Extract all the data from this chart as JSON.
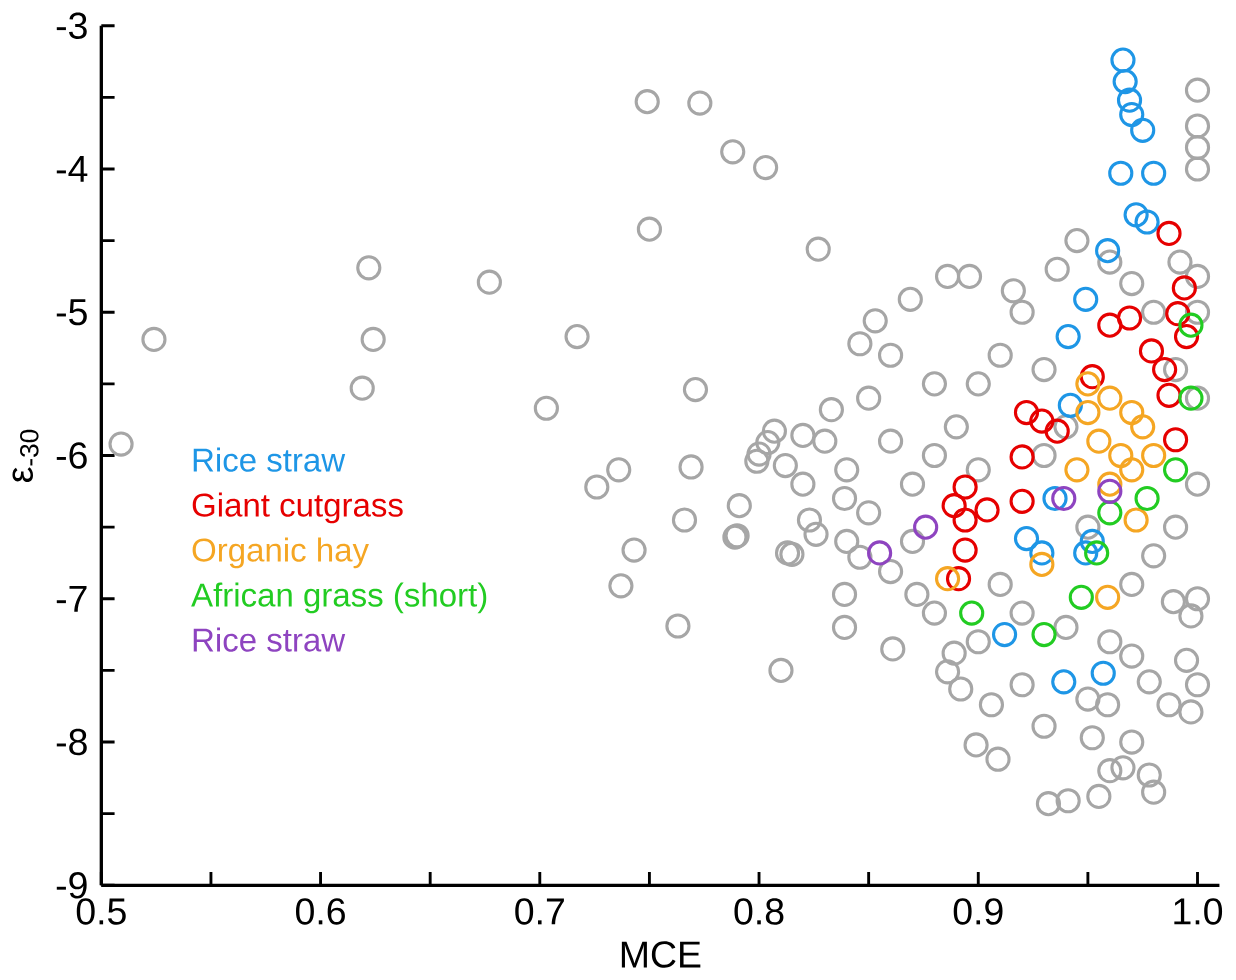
{
  "chart_data": {
    "type": "scatter",
    "xlabel": "MCE",
    "ylabel": "ε$_{-30}$",
    "xlim": [
      0.5,
      1.01
    ],
    "ylim": [
      -9,
      -3
    ],
    "xticks": [
      0.5,
      {
        "value": 0.55,
        "label": null
      },
      0.6,
      {
        "value": 0.65,
        "label": null
      },
      0.7,
      {
        "value": 0.75,
        "label": null
      },
      0.8,
      {
        "value": 0.85,
        "label": null
      },
      0.9,
      {
        "value": 0.95,
        "label": null
      },
      {
        "value": 1,
        "label": "1.0"
      }
    ],
    "yticks": [
      -9,
      {
        "value": -8.5,
        "label": null
      },
      -8,
      {
        "value": -7.5,
        "label": null
      },
      -7,
      {
        "value": -6.5,
        "label": null
      },
      -6,
      {
        "value": -5.5,
        "label": null
      },
      -5,
      {
        "value": -4.5,
        "label": null
      },
      -4,
      {
        "value": -3.5,
        "label": null
      },
      -3
    ],
    "marker": "circle",
    "grid": false,
    "legend": "left",
    "series": [
      {
        "color": "#a6a6a6",
        "x": [
          0.509,
          0.524,
          0.622,
          0.624,
          0.619,
          0.677,
          0.703,
          0.717,
          0.726,
          0.736,
          0.743,
          0.737,
          0.749,
          0.773,
          0.75,
          0.771,
          0.769,
          0.766,
          0.763,
          0.788,
          0.803,
          0.791,
          0.789,
          0.827,
          0.81,
          0.815,
          0.804,
          0.799,
          0.812,
          0.82,
          1.0,
          1.0,
          1.0,
          1.0,
          0.886,
          0.896,
          0.869,
          0.853,
          0.846,
          0.833,
          0.807,
          0.8,
          0.945,
          0.936,
          0.916,
          0.992,
          1.0,
          1.0,
          0.79,
          0.813,
          0.826,
          0.839,
          0.839,
          0.861,
          0.886,
          0.899,
          0.909,
          0.93,
          0.932,
          0.941,
          0.955,
          0.952,
          0.97,
          0.978,
          0.966,
          0.987,
          0.997,
          0.995,
          0.997,
          0.989,
          0.978,
          0.959,
          0.906,
          0.892,
          0.889,
          0.872,
          0.86,
          0.846,
          0.839,
          0.823,
          0.85,
          0.86,
          0.87,
          0.88,
          0.89,
          0.9,
          0.91,
          0.92,
          0.93,
          0.84,
          0.85,
          0.87,
          0.88,
          0.91,
          0.92,
          0.94,
          0.96,
          0.98,
          0.99,
          1.0,
          1.0,
          0.99,
          0.97,
          0.96,
          0.98,
          0.95,
          0.97,
          0.93,
          0.94,
          0.9,
          0.86,
          0.83,
          0.82,
          0.84,
          0.88,
          0.9,
          0.95,
          0.97,
          1.0,
          1.0,
          0.98,
          0.92,
          0.96
        ],
        "values": [
          -5.92,
          -5.19,
          -4.69,
          -5.19,
          -5.53,
          -4.79,
          -5.67,
          -5.17,
          -6.22,
          -6.1,
          -6.66,
          -6.91,
          -3.53,
          -3.54,
          -4.42,
          -5.54,
          -6.08,
          -6.45,
          -7.19,
          -3.88,
          -3.99,
          -6.35,
          -6.57,
          -4.56,
          -7.5,
          -6.69,
          -5.91,
          -6.04,
          -6.07,
          -5.86,
          -3.45,
          -3.7,
          -3.85,
          -4.0,
          -4.75,
          -4.75,
          -4.91,
          -5.06,
          -5.22,
          -5.68,
          -5.83,
          -5.99,
          -4.5,
          -4.7,
          -4.85,
          -4.65,
          -4.75,
          -5.0,
          -6.56,
          -6.68,
          -6.55,
          -6.97,
          -7.2,
          -7.35,
          -7.51,
          -8.02,
          -8.12,
          -7.89,
          -8.43,
          -8.41,
          -8.38,
          -7.97,
          -8.0,
          -8.23,
          -8.18,
          -7.74,
          -7.79,
          -7.43,
          -7.12,
          -7.02,
          -7.58,
          -7.74,
          -7.74,
          -7.63,
          -7.38,
          -6.97,
          -6.81,
          -6.71,
          -6.3,
          -6.45,
          -5.6,
          -5.9,
          -6.2,
          -5.5,
          -5.8,
          -6.1,
          -5.3,
          -5.0,
          -5.4,
          -6.1,
          -6.4,
          -6.6,
          -6.0,
          -6.9,
          -7.1,
          -7.2,
          -7.3,
          -6.7,
          -6.5,
          -6.2,
          -5.6,
          -5.4,
          -4.8,
          -4.65,
          -5.0,
          -6.5,
          -6.9,
          -6.0,
          -5.8,
          -5.5,
          -5.3,
          -5.9,
          -6.2,
          -6.6,
          -7.1,
          -7.3,
          -7.7,
          -7.4,
          -7.0,
          -7.6,
          -8.35,
          -7.6,
          -8.2
        ]
      },
      {
        "name": "Rice straw",
        "color": "#1e96e6",
        "x": [
          0.966,
          0.967,
          0.969,
          0.97,
          0.975,
          0.965,
          0.98,
          0.972,
          0.977,
          0.959,
          0.949,
          0.941,
          0.942,
          0.912,
          0.939,
          0.957,
          0.929,
          0.949,
          0.952,
          0.935,
          0.922
        ],
        "values": [
          -3.24,
          -3.39,
          -3.52,
          -3.62,
          -3.73,
          -4.03,
          -4.03,
          -4.32,
          -4.37,
          -4.57,
          -4.91,
          -5.17,
          -5.65,
          -7.25,
          -7.58,
          -7.52,
          -6.68,
          -6.68,
          -6.6,
          -6.3,
          -6.58
        ]
      },
      {
        "name": "Giant cutgrass",
        "color": "#e60000",
        "x": [
          0.987,
          0.994,
          0.991,
          0.995,
          0.96,
          0.969,
          0.979,
          0.985,
          0.987,
          0.99,
          0.952,
          0.922,
          0.929,
          0.936,
          0.92,
          0.894,
          0.889,
          0.904,
          0.92,
          0.894,
          0.894,
          0.891
        ],
        "values": [
          -4.45,
          -4.83,
          -5.01,
          -5.17,
          -5.09,
          -5.04,
          -5.27,
          -5.4,
          -5.58,
          -5.89,
          -5.45,
          -5.7,
          -5.76,
          -5.83,
          -6.01,
          -6.22,
          -6.35,
          -6.38,
          -6.32,
          -6.45,
          -6.66,
          -6.86
        ]
      },
      {
        "name": "Organic hay",
        "color": "#f5a623",
        "x": [
          0.886,
          0.929,
          0.959,
          0.972,
          0.95,
          0.96,
          0.97,
          0.955,
          0.965,
          0.975,
          0.945,
          0.96,
          0.97,
          0.95,
          0.98
        ],
        "values": [
          -6.86,
          -6.76,
          -6.99,
          -6.45,
          -5.5,
          -5.6,
          -5.7,
          -5.9,
          -6.0,
          -5.8,
          -6.1,
          -6.2,
          -6.1,
          -5.7,
          -6.0
        ]
      },
      {
        "name": "African grass (short)",
        "color": "#22cc22",
        "x": [
          0.997,
          0.997,
          0.897,
          0.93,
          0.947,
          0.954,
          0.977,
          0.99,
          0.96
        ],
        "values": [
          -5.09,
          -5.6,
          -7.1,
          -7.25,
          -6.99,
          -6.68,
          -6.3,
          -6.1,
          -6.4
        ]
      },
      {
        "name": "Rice straw",
        "color": "#8e44c0",
        "x": [
          0.855,
          0.876,
          0.939,
          0.96
        ],
        "values": [
          -6.68,
          -6.5,
          -6.3,
          -6.25
        ]
      }
    ]
  }
}
